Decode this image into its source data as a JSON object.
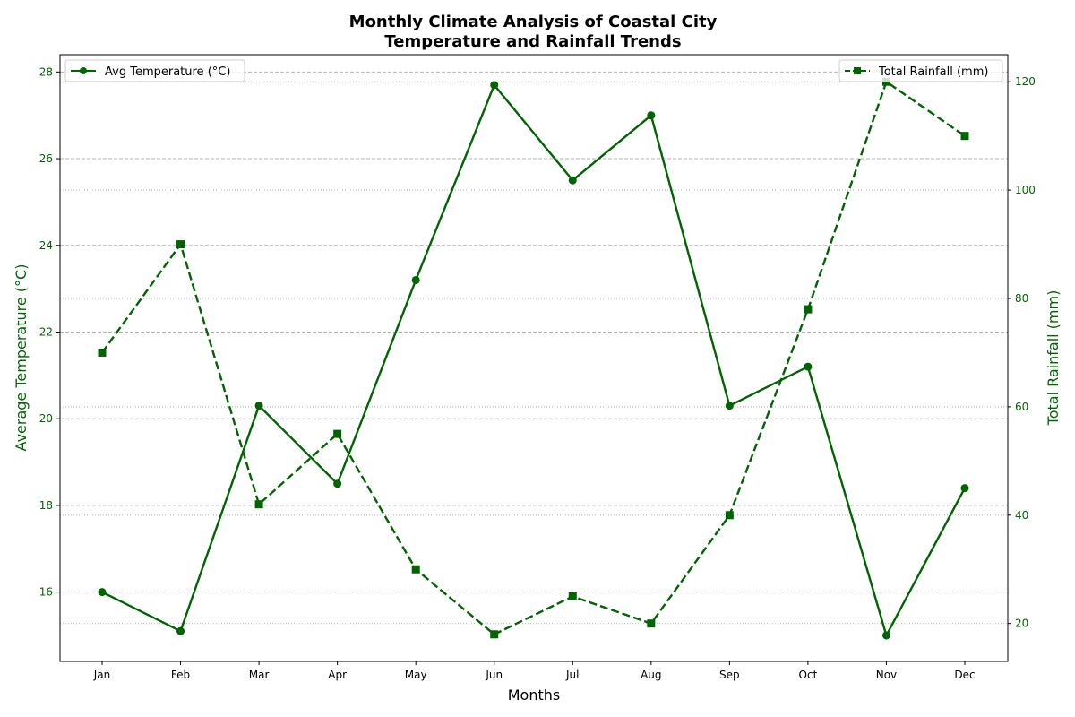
{
  "chart_data": {
    "type": "line",
    "title_line1": "Monthly Climate Analysis of Coastal City",
    "title_line2": "Temperature and Rainfall Trends",
    "xlabel": "Months",
    "ylabel_left": "Average Temperature (°C)",
    "ylabel_right": "Total Rainfall (mm)",
    "categories": [
      "Jan",
      "Feb",
      "Mar",
      "Apr",
      "May",
      "Jun",
      "Jul",
      "Aug",
      "Sep",
      "Oct",
      "Nov",
      "Dec"
    ],
    "y_left_ticks": [
      16,
      18,
      20,
      22,
      24,
      26,
      28
    ],
    "y_left_ticks_text": [
      "16",
      "18",
      "20",
      "22",
      "24",
      "26",
      "28"
    ],
    "y_right_ticks": [
      20,
      40,
      60,
      80,
      100,
      120
    ],
    "y_right_ticks_text": [
      "20",
      "40",
      "60",
      "80",
      "100",
      "120"
    ],
    "ylim_left": [
      14.4,
      28.4
    ],
    "ylim_right": [
      13,
      125
    ],
    "grid": true,
    "series": [
      {
        "name": "Avg Temperature (°C)",
        "axis": "left",
        "style": "solid",
        "marker": "circle",
        "color": "#006400",
        "values": [
          16.0,
          15.1,
          20.3,
          18.5,
          23.2,
          27.7,
          25.5,
          27.0,
          20.3,
          21.2,
          15.0,
          18.4
        ]
      },
      {
        "name": "Total Rainfall (mm)",
        "axis": "right",
        "style": "dashed",
        "marker": "square",
        "color": "#006400",
        "values": [
          70,
          90,
          42,
          55,
          30,
          18,
          25,
          20,
          40,
          78,
          120,
          110
        ]
      }
    ],
    "legend_left_position": "top-left",
    "legend_right_position": "top-right"
  }
}
